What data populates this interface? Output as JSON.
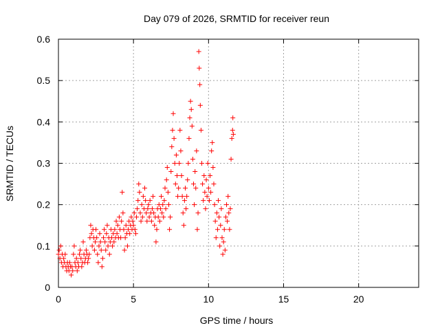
{
  "chart_data": {
    "type": "scatter",
    "title": "Day 079 of 2026, SRMTID for receiver reun",
    "xlabel": "GPS time / hours",
    "ylabel": "SRMTID / TECUs",
    "xlim": [
      0,
      24
    ],
    "ylim": [
      0,
      0.6
    ],
    "xticks": [
      0,
      5,
      10,
      15,
      20
    ],
    "xtick_labels": [
      "0",
      "5",
      "10",
      "15",
      "20"
    ],
    "yticks": [
      0,
      0.1,
      0.2,
      0.3,
      0.4,
      0.5,
      0.6
    ],
    "ytick_labels": [
      "0",
      "0.1",
      "0.2",
      "0.3",
      "0.4",
      "0.5",
      "0.6"
    ],
    "grid": true,
    "marker": "+",
    "color": "#ff0000",
    "series": [
      {
        "name": "SRMTID",
        "points": [
          [
            0.0,
            0.08
          ],
          [
            0.05,
            0.09
          ],
          [
            0.1,
            0.07
          ],
          [
            0.15,
            0.1
          ],
          [
            0.2,
            0.06
          ],
          [
            0.25,
            0.08
          ],
          [
            0.3,
            0.05
          ],
          [
            0.35,
            0.07
          ],
          [
            0.4,
            0.06
          ],
          [
            0.45,
            0.08
          ],
          [
            0.5,
            0.05
          ],
          [
            0.55,
            0.04
          ],
          [
            0.6,
            0.06
          ],
          [
            0.65,
            0.05
          ],
          [
            0.7,
            0.04
          ],
          [
            0.75,
            0.06
          ],
          [
            0.8,
            0.05
          ],
          [
            0.85,
            0.03
          ],
          [
            0.9,
            0.05
          ],
          [
            0.95,
            0.04
          ],
          [
            1.0,
            0.08
          ],
          [
            1.05,
            0.1
          ],
          [
            1.1,
            0.06
          ],
          [
            1.15,
            0.05
          ],
          [
            1.2,
            0.07
          ],
          [
            1.25,
            0.04
          ],
          [
            1.3,
            0.06
          ],
          [
            1.35,
            0.05
          ],
          [
            1.4,
            0.08
          ],
          [
            1.45,
            0.09
          ],
          [
            1.5,
            0.07
          ],
          [
            1.55,
            0.05
          ],
          [
            1.6,
            0.06
          ],
          [
            1.65,
            0.11
          ],
          [
            1.7,
            0.08
          ],
          [
            1.75,
            0.06
          ],
          [
            1.8,
            0.07
          ],
          [
            1.85,
            0.09
          ],
          [
            1.9,
            0.08
          ],
          [
            1.95,
            0.06
          ],
          [
            2.0,
            0.07
          ],
          [
            2.05,
            0.08
          ],
          [
            2.1,
            0.12
          ],
          [
            2.15,
            0.15
          ],
          [
            2.2,
            0.13
          ],
          [
            2.25,
            0.1
          ],
          [
            2.3,
            0.14
          ],
          [
            2.35,
            0.12
          ],
          [
            2.4,
            0.09
          ],
          [
            2.45,
            0.11
          ],
          [
            2.5,
            0.14
          ],
          [
            2.55,
            0.12
          ],
          [
            2.6,
            0.08
          ],
          [
            2.65,
            0.06
          ],
          [
            2.7,
            0.1
          ],
          [
            2.75,
            0.13
          ],
          [
            2.8,
            0.11
          ],
          [
            2.85,
            0.09
          ],
          [
            2.9,
            0.05
          ],
          [
            2.95,
            0.07
          ],
          [
            3.0,
            0.12
          ],
          [
            3.05,
            0.14
          ],
          [
            3.1,
            0.11
          ],
          [
            3.15,
            0.09
          ],
          [
            3.2,
            0.13
          ],
          [
            3.25,
            0.15
          ],
          [
            3.3,
            0.1
          ],
          [
            3.35,
            0.12
          ],
          [
            3.4,
            0.08
          ],
          [
            3.45,
            0.11
          ],
          [
            3.5,
            0.14
          ],
          [
            3.55,
            0.12
          ],
          [
            3.6,
            0.1
          ],
          [
            3.65,
            0.13
          ],
          [
            3.7,
            0.11
          ],
          [
            3.75,
            0.14
          ],
          [
            3.8,
            0.12
          ],
          [
            3.85,
            0.16
          ],
          [
            3.9,
            0.13
          ],
          [
            3.95,
            0.15
          ],
          [
            4.0,
            0.12
          ],
          [
            4.05,
            0.17
          ],
          [
            4.1,
            0.14
          ],
          [
            4.15,
            0.12
          ],
          [
            4.2,
            0.16
          ],
          [
            4.25,
            0.23
          ],
          [
            4.3,
            0.18
          ],
          [
            4.35,
            0.14
          ],
          [
            4.4,
            0.09
          ],
          [
            4.45,
            0.12
          ],
          [
            4.5,
            0.15
          ],
          [
            4.55,
            0.13
          ],
          [
            4.6,
            0.1
          ],
          [
            4.65,
            0.14
          ],
          [
            4.7,
            0.16
          ],
          [
            4.75,
            0.13
          ],
          [
            4.8,
            0.15
          ],
          [
            4.85,
            0.17
          ],
          [
            4.9,
            0.14
          ],
          [
            4.95,
            0.16
          ],
          [
            5.0,
            0.15
          ],
          [
            5.05,
            0.18
          ],
          [
            5.1,
            0.14
          ],
          [
            5.15,
            0.13
          ],
          [
            5.2,
            0.17
          ],
          [
            5.25,
            0.19
          ],
          [
            5.3,
            0.21
          ],
          [
            5.35,
            0.25
          ],
          [
            5.4,
            0.23
          ],
          [
            5.45,
            0.18
          ],
          [
            5.5,
            0.16
          ],
          [
            5.55,
            0.2
          ],
          [
            5.6,
            0.17
          ],
          [
            5.65,
            0.22
          ],
          [
            5.7,
            0.19
          ],
          [
            5.75,
            0.24
          ],
          [
            5.8,
            0.21
          ],
          [
            5.85,
            0.18
          ],
          [
            5.9,
            0.16
          ],
          [
            5.95,
            0.19
          ],
          [
            6.0,
            0.2
          ],
          [
            6.05,
            0.17
          ],
          [
            6.1,
            0.21
          ],
          [
            6.15,
            0.18
          ],
          [
            6.2,
            0.16
          ],
          [
            6.25,
            0.19
          ],
          [
            6.3,
            0.22
          ],
          [
            6.35,
            0.18
          ],
          [
            6.4,
            0.15
          ],
          [
            6.45,
            0.17
          ],
          [
            6.5,
            0.11
          ],
          [
            6.55,
            0.14
          ],
          [
            6.6,
            0.19
          ],
          [
            6.65,
            0.17
          ],
          [
            6.7,
            0.2
          ],
          [
            6.75,
            0.16
          ],
          [
            6.8,
            0.19
          ],
          [
            6.85,
            0.22
          ],
          [
            6.9,
            0.18
          ],
          [
            6.95,
            0.2
          ],
          [
            7.0,
            0.17
          ],
          [
            7.05,
            0.21
          ],
          [
            7.1,
            0.24
          ],
          [
            7.15,
            0.19
          ],
          [
            7.2,
            0.26
          ],
          [
            7.25,
            0.29
          ],
          [
            7.3,
            0.23
          ],
          [
            7.35,
            0.2
          ],
          [
            7.4,
            0.14
          ],
          [
            7.45,
            0.17
          ],
          [
            7.5,
            0.28
          ],
          [
            7.55,
            0.34
          ],
          [
            7.6,
            0.38
          ],
          [
            7.65,
            0.42
          ],
          [
            7.7,
            0.36
          ],
          [
            7.75,
            0.3
          ],
          [
            7.8,
            0.25
          ],
          [
            7.85,
            0.32
          ],
          [
            7.9,
            0.27
          ],
          [
            7.95,
            0.22
          ],
          [
            8.0,
            0.24
          ],
          [
            8.05,
            0.3
          ],
          [
            8.1,
            0.38
          ],
          [
            8.15,
            0.33
          ],
          [
            8.2,
            0.27
          ],
          [
            8.25,
            0.22
          ],
          [
            8.3,
            0.18
          ],
          [
            8.35,
            0.15
          ],
          [
            8.4,
            0.21
          ],
          [
            8.45,
            0.24
          ],
          [
            8.5,
            0.19
          ],
          [
            8.55,
            0.22
          ],
          [
            8.6,
            0.26
          ],
          [
            8.65,
            0.3
          ],
          [
            8.7,
            0.36
          ],
          [
            8.75,
            0.41
          ],
          [
            8.8,
            0.45
          ],
          [
            8.85,
            0.43
          ],
          [
            8.9,
            0.39
          ],
          [
            8.95,
            0.31
          ],
          [
            9.0,
            0.25
          ],
          [
            9.05,
            0.2
          ],
          [
            9.1,
            0.28
          ],
          [
            9.15,
            0.24
          ],
          [
            9.2,
            0.33
          ],
          [
            9.25,
            0.14
          ],
          [
            9.3,
            0.18
          ],
          [
            9.35,
            0.57
          ],
          [
            9.38,
            0.53
          ],
          [
            9.42,
            0.49
          ],
          [
            9.45,
            0.44
          ],
          [
            9.5,
            0.38
          ],
          [
            9.55,
            0.3
          ],
          [
            9.6,
            0.25
          ],
          [
            9.65,
            0.21
          ],
          [
            9.7,
            0.27
          ],
          [
            9.75,
            0.23
          ],
          [
            9.8,
            0.19
          ],
          [
            9.85,
            0.26
          ],
          [
            9.9,
            0.22
          ],
          [
            9.95,
            0.3
          ],
          [
            10.0,
            0.24
          ],
          [
            10.05,
            0.21
          ],
          [
            10.1,
            0.27
          ],
          [
            10.15,
            0.23
          ],
          [
            10.2,
            0.33
          ],
          [
            10.25,
            0.35
          ],
          [
            10.3,
            0.29
          ],
          [
            10.35,
            0.25
          ],
          [
            10.4,
            0.2
          ],
          [
            10.45,
            0.16
          ],
          [
            10.5,
            0.12
          ],
          [
            10.55,
            0.18
          ],
          [
            10.6,
            0.14
          ],
          [
            10.65,
            0.21
          ],
          [
            10.7,
            0.17
          ],
          [
            10.75,
            0.1
          ],
          [
            10.8,
            0.15
          ],
          [
            10.85,
            0.19
          ],
          [
            10.9,
            0.12
          ],
          [
            10.95,
            0.08
          ],
          [
            11.0,
            0.11
          ],
          [
            11.05,
            0.14
          ],
          [
            11.1,
            0.09
          ],
          [
            11.15,
            0.17
          ],
          [
            11.2,
            0.2
          ],
          [
            11.25,
            0.16
          ],
          [
            11.3,
            0.22
          ],
          [
            11.35,
            0.18
          ],
          [
            11.4,
            0.14
          ],
          [
            11.45,
            0.19
          ],
          [
            11.5,
            0.31
          ],
          [
            11.55,
            0.36
          ],
          [
            11.6,
            0.38
          ],
          [
            11.62,
            0.41
          ],
          [
            11.65,
            0.37
          ]
        ]
      }
    ]
  }
}
